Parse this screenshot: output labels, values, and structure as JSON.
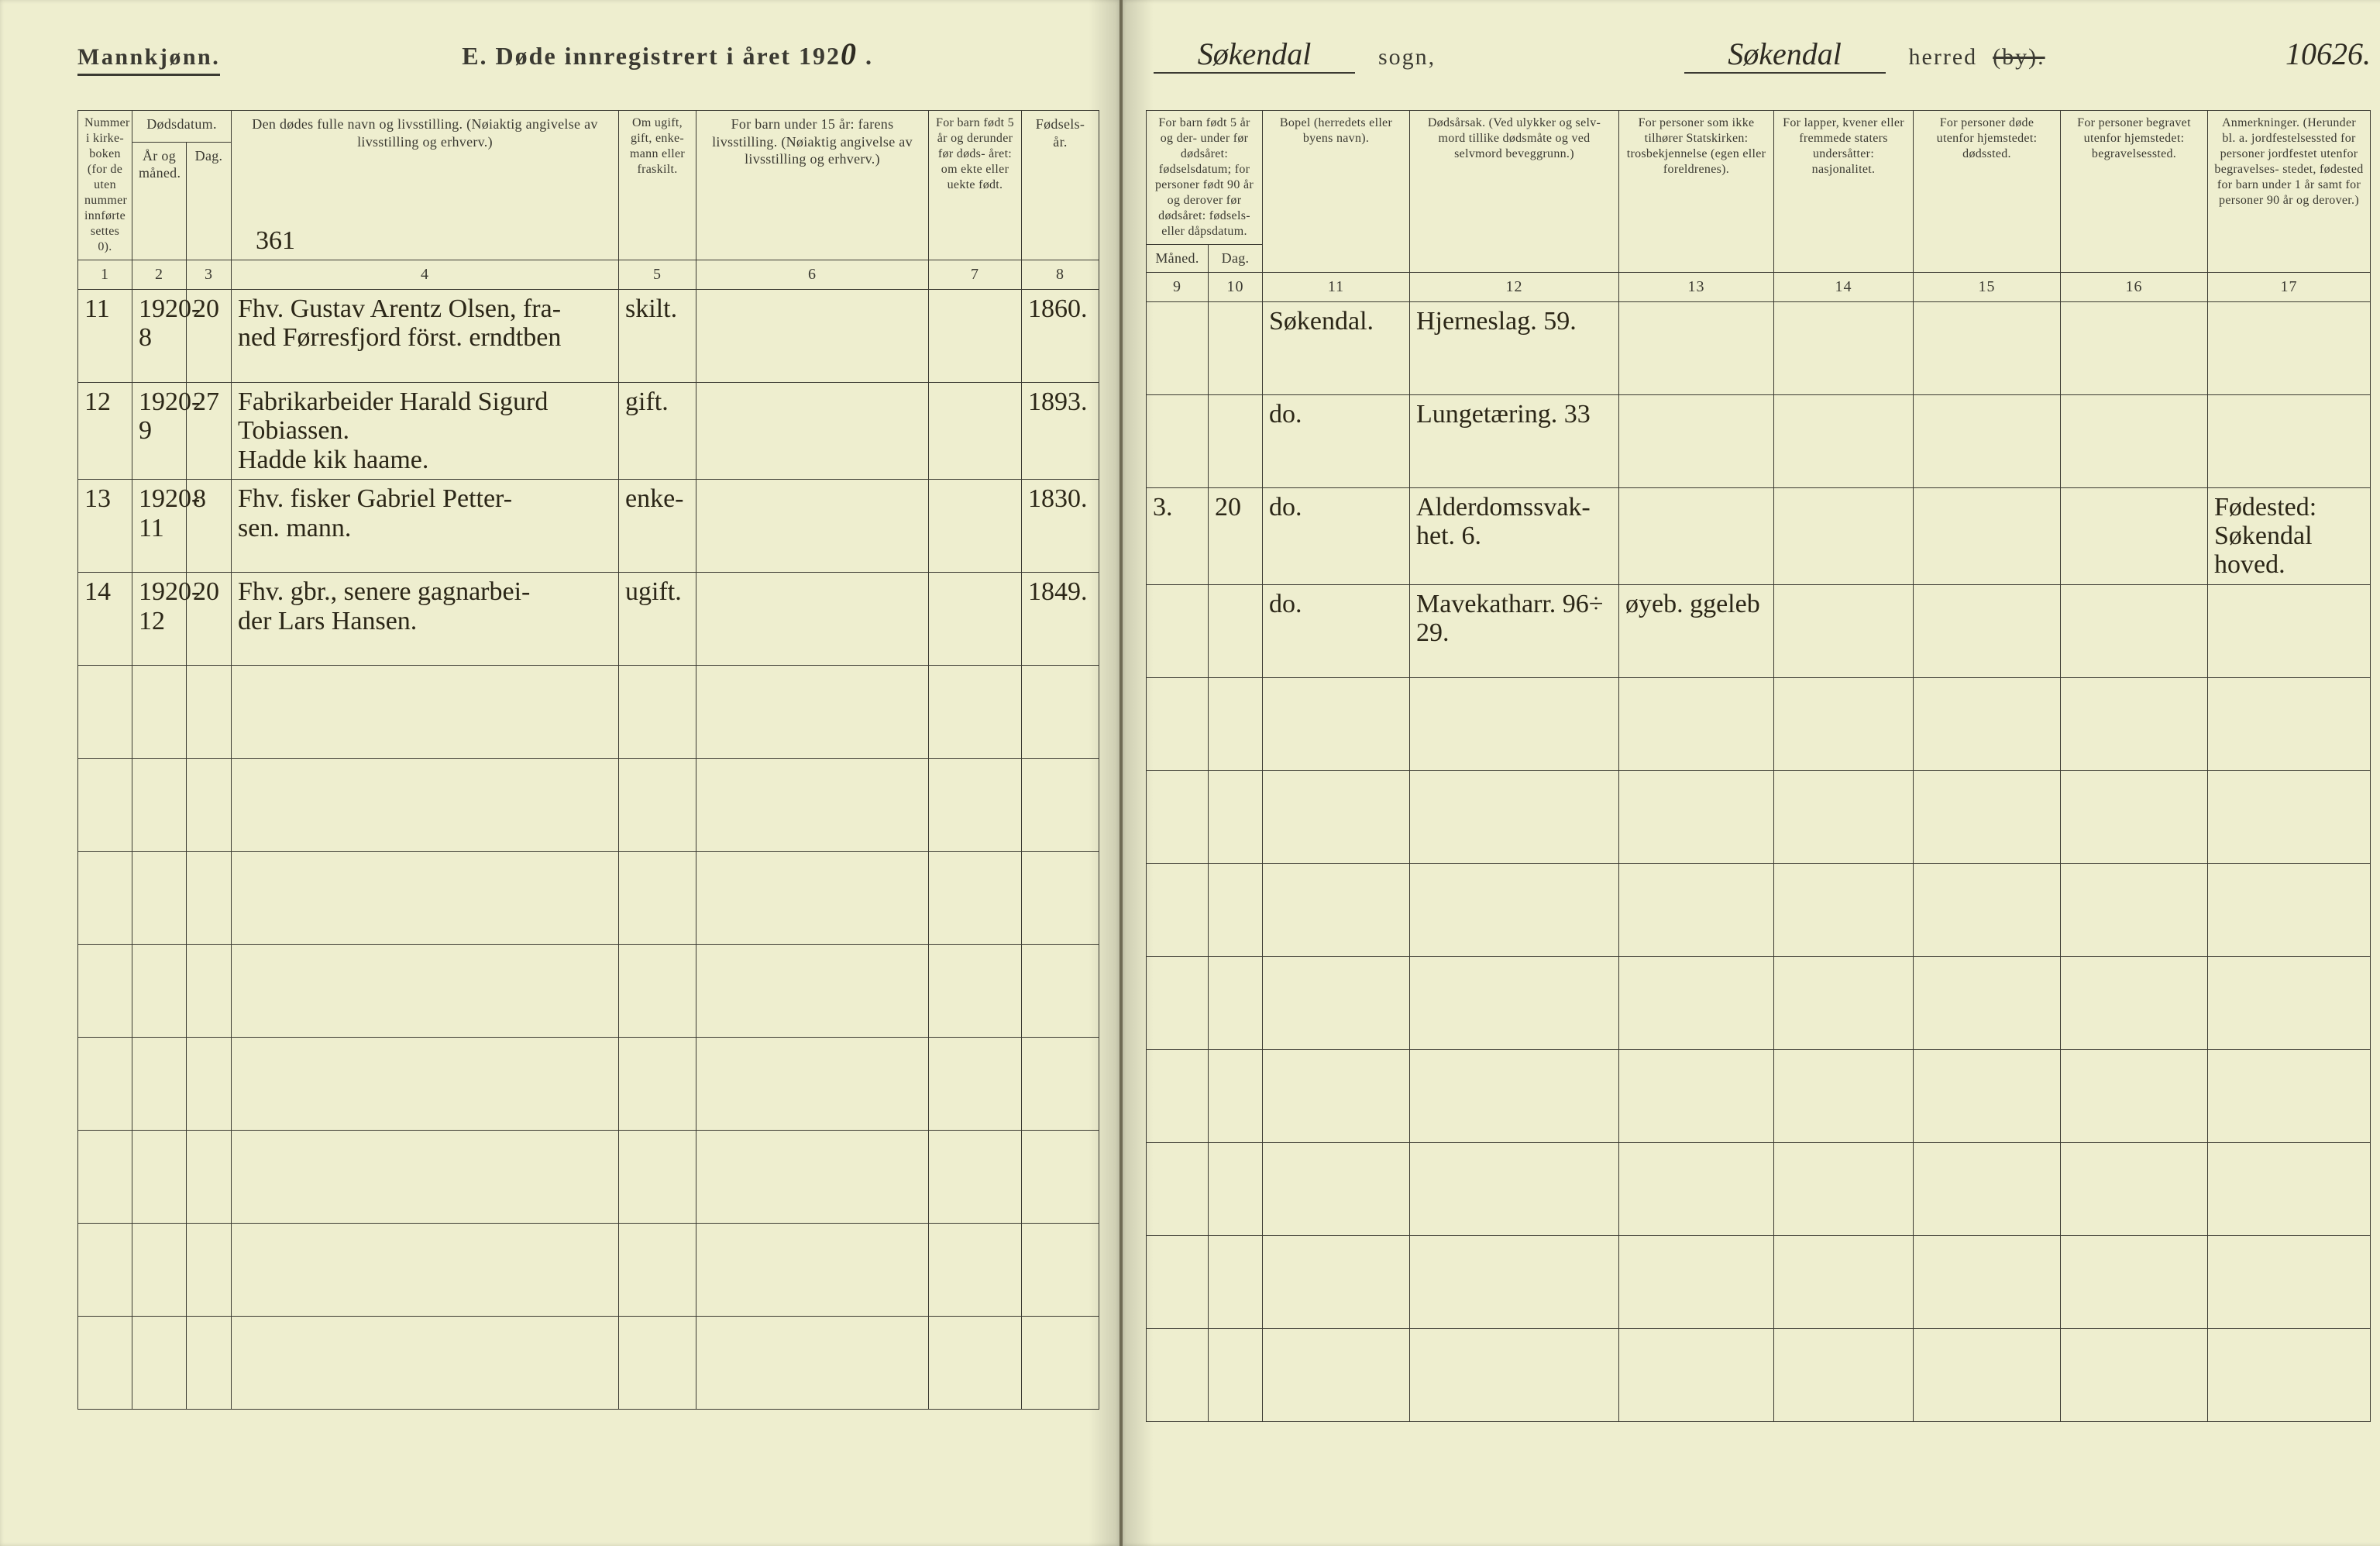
{
  "header": {
    "gender_label": "Mannkjønn.",
    "title_prefix": "E.   Døde innregistrert i året 192",
    "year_hand": "0",
    "title_suffix": " .",
    "sogn_value_hand": "Søkendal",
    "sogn_label": "sogn,",
    "herred_value_hand": "Søkendal",
    "herred_label": "herred",
    "by_struck": "(by).",
    "page_number_hand": "10626."
  },
  "left_folio_hand": "361",
  "columns_left": {
    "c1": "Nummer i kirke- boken (for de uten nummer innførte settes 0).",
    "c2_group": "Dødsdatum.",
    "c2": "År og måned.",
    "c3": "Dag.",
    "c4": "Den dødes fulle navn og livsstilling.\n(Nøiaktig angivelse av livsstilling og erhverv.)",
    "c5": "Om ugift, gift, enke- mann eller fraskilt.",
    "c6": "For barn under 15 år:\nfarens livsstilling.\n(Nøiaktig angivelse av livsstilling og erhverv.)",
    "c7": "For barn født 5 år og derunder før døds- året: om ekte eller uekte født.",
    "c8": "Fødsels- år."
  },
  "columns_right": {
    "c9_10_group": "For barn født 5 år og der- under før dødsåret: fødselsdatum; for personer født 90 år og derover før dødsåret: fødsels- eller dåpsdatum.",
    "c9": "Måned.",
    "c10": "Dag.",
    "c11": "Bopel\n(herredets eller byens navn).",
    "c12": "Dødsårsak.\n(Ved ulykker og selv- mord tillike dødsmåte og ved selvmord beveggrunn.)",
    "c13": "For personer som ikke tilhører Statskirken: trosbekjennelse (egen eller foreldrenes).",
    "c14": "For lapper, kvener eller fremmede staters undersåtter: nasjonalitet.",
    "c15": "For personer døde utenfor hjemstedet: dødssted.",
    "c16": "For personer begravet utenfor hjemstedet: begravelsessted.",
    "c17": "Anmerkninger.\n(Herunder bl. a. jordfestelsessted for personer jordfestet utenfor begravelses- stedet, fødested for barn under 1 år samt for personer 90 år og derover.)"
  },
  "col_nums_left": [
    "1",
    "2",
    "3",
    "4",
    "5",
    "6",
    "7",
    "8"
  ],
  "col_nums_right": [
    "9",
    "10",
    "11",
    "12",
    "13",
    "14",
    "15",
    "16",
    "17"
  ],
  "rows": [
    {
      "c1": "11",
      "c2": "1920-8",
      "c3": "20",
      "c4": "Fhv. Gustav Arentz Olsen, fra-\nned Førresfjord först. erndtben",
      "c5": "skilt.",
      "c6": "",
      "c7": "",
      "c8": "1860.",
      "c9": "",
      "c10": "",
      "c11": "Søkendal.",
      "c12": "Hjerneslag.        59.",
      "c13": "",
      "c14": "",
      "c15": "",
      "c16": "",
      "c17": ""
    },
    {
      "c1": "12",
      "c2": "1920-9",
      "c3": "27",
      "c4": "Fabrikarbeider Harald Sigurd Tobiassen.\nHadde kik haame.",
      "c5": "gift.",
      "c6": "",
      "c7": "",
      "c8": "1893.",
      "c9": "",
      "c10": "",
      "c11": "do.",
      "c12": "Lungetæring.      33",
      "c13": "",
      "c14": "",
      "c15": "",
      "c16": "",
      "c17": ""
    },
    {
      "c1": "13",
      "c2": "1920-11",
      "c3": "8",
      "c4": "Fhv. fisker Gabriel Petter-\nsen. mann.",
      "c5": "enke-",
      "c6": "",
      "c7": "",
      "c8": "1830.",
      "c9": "3.",
      "c10": "20",
      "c11": "do.",
      "c12": "Alderdomssvak-\nhet.               6.",
      "c13": "",
      "c14": "",
      "c15": "",
      "c16": "",
      "c17": "Fødested:\nSøkendal hoved."
    },
    {
      "c1": "14",
      "c2": "1920-12",
      "c3": "20",
      "c4": "Fhv. gbr., senere gagnarbei-\nder Lars Hansen.",
      "c5": "ugift.",
      "c6": "",
      "c7": "",
      "c8": "1849.",
      "c9": "",
      "c10": "",
      "c11": "do.",
      "c12": "Mavekatharr.   96÷  29.",
      "c13": "øyeb. ggeleb",
      "c14": "",
      "c15": "",
      "c16": "",
      "c17": ""
    }
  ],
  "empty_row_count": 8,
  "colors": {
    "paper": "#eeeecf",
    "ink_print": "#3b3a32",
    "ink_hand": "#2b2617",
    "gutter": "#6e6a54",
    "background": "#2a2a26"
  },
  "typography": {
    "print_font": "Times New Roman",
    "hand_font": "Brush Script MT",
    "header_title_pt": 32,
    "header_label_pt": 30,
    "column_header_pt": 18,
    "handwriting_pt": 34
  }
}
